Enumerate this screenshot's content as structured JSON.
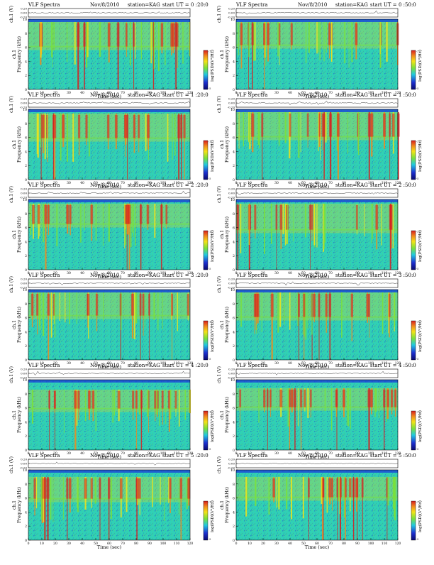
{
  "header": {
    "title": "VLF Spectra",
    "date": "Nov/8/2010",
    "station": "station=KAG",
    "start_prefix": "start  UT ="
  },
  "colors": {
    "background": "#ffffff",
    "spectrogram_base": "#2fd0b6",
    "cyan": "#20c8e0",
    "green": "#7ae03a",
    "yellow": "#f2e317",
    "orange": "#f28a1c",
    "red": "#d81e1e",
    "blue": "#1d2fd0",
    "dark_blue": "#0a0a70",
    "saturated_band": "#1a3ad8",
    "trace": "#333333"
  },
  "chart_data": [
    {
      "type": "heatmap",
      "panel": 1,
      "start_ut": "0 :20:0",
      "channel_label": "ch.1",
      "voltage_label": "ch.1 (V)",
      "voltage_ticks": [
        "0.20",
        "0.00",
        "-0.20"
      ],
      "ylabel": "Frequency  (kHz)",
      "xlabel": "Time  (sec)",
      "colorbar_label": "log(PSD)(V²/Hz)",
      "colorbar_ticks": [
        "-1",
        "-5"
      ],
      "x_ticks": [
        0,
        10,
        20,
        30,
        40,
        50,
        60,
        70,
        80,
        90,
        100,
        110,
        120
      ],
      "y_ticks": [
        0,
        2,
        4,
        6,
        8,
        10
      ],
      "xlim": [
        0,
        120
      ],
      "ylim": [
        0,
        10
      ],
      "seed": 11,
      "upper_band_khz": [
        5.6,
        9.6
      ]
    },
    {
      "type": "heatmap",
      "panel": 2,
      "start_ut": "0 :50:0",
      "channel_label": "ch.1",
      "voltage_label": "ch.1 (V)",
      "voltage_ticks": [
        "0.20",
        "0.00",
        "-0.20"
      ],
      "ylabel": "Frequency  (kHz)",
      "xlabel": "Time  (sec)",
      "colorbar_label": "log(PSD)(V²/Hz)",
      "colorbar_ticks": [
        "-1",
        "-5"
      ],
      "x_ticks": [
        0,
        10,
        20,
        30,
        40,
        50,
        60,
        70,
        80,
        90,
        100,
        110,
        120
      ],
      "y_ticks": [
        0,
        2,
        4,
        6,
        8,
        10
      ],
      "xlim": [
        0,
        120
      ],
      "ylim": [
        0,
        10
      ],
      "seed": 23,
      "upper_band_khz": [
        5.8,
        9.6
      ]
    },
    {
      "type": "heatmap",
      "panel": 3,
      "start_ut": "1 :20:0",
      "channel_label": "ch.1",
      "voltage_label": "ch.1 (V)",
      "voltage_ticks": [
        "0.20",
        "0.00",
        "-0.20"
      ],
      "ylabel": "Frequency  (kHz)",
      "xlabel": "Time  (sec)",
      "colorbar_label": "log(PSD)(V²/Hz)",
      "colorbar_ticks": [
        "-1",
        "-5"
      ],
      "x_ticks": [
        0,
        10,
        20,
        30,
        40,
        50,
        60,
        70,
        80,
        90,
        100,
        110,
        120
      ],
      "y_ticks": [
        0,
        2,
        4,
        6,
        8,
        10
      ],
      "xlim": [
        0,
        120
      ],
      "ylim": [
        0,
        10
      ],
      "seed": 37,
      "upper_band_khz": [
        5.4,
        9.4
      ]
    },
    {
      "type": "heatmap",
      "panel": 4,
      "start_ut": "1 :50:0",
      "channel_label": "ch.1",
      "voltage_label": "ch.1 (V)",
      "voltage_ticks": [
        "0.20",
        "0.00",
        "-0.20"
      ],
      "ylabel": "Frequency  (kHz)",
      "xlabel": "Time  (sec)",
      "colorbar_label": "log(PSD)(V²/Hz)",
      "colorbar_ticks": [
        "-1",
        "-5"
      ],
      "x_ticks": [
        0,
        10,
        20,
        30,
        40,
        50,
        60,
        70,
        80,
        90,
        100,
        110,
        120
      ],
      "y_ticks": [
        0,
        2,
        4,
        6,
        8,
        10
      ],
      "xlim": [
        0,
        120
      ],
      "ylim": [
        0,
        10
      ],
      "seed": 41,
      "upper_band_khz": [
        5.6,
        9.6
      ]
    },
    {
      "type": "heatmap",
      "panel": 5,
      "start_ut": "2 :20:0",
      "channel_label": "ch.1",
      "voltage_label": "ch.1 (V)",
      "voltage_ticks": [
        "0.20",
        "0.00",
        "-0.20"
      ],
      "ylabel": "Frequency  (kHz)",
      "xlabel": "Time  (sec)",
      "colorbar_label": "log(PSD)(V²/Hz)",
      "colorbar_ticks": [
        "-1",
        "-5"
      ],
      "x_ticks": [
        0,
        10,
        20,
        30,
        40,
        50,
        60,
        70,
        80,
        90,
        100,
        110,
        120
      ],
      "y_ticks": [
        0,
        2,
        4,
        6,
        8,
        10
      ],
      "xlim": [
        0,
        120
      ],
      "ylim": [
        0,
        10
      ],
      "seed": 53,
      "upper_band_khz": [
        6.0,
        9.4
      ]
    },
    {
      "type": "heatmap",
      "panel": 6,
      "start_ut": "2 :50:0",
      "channel_label": "ch.1",
      "voltage_label": "ch.1 (V)",
      "voltage_ticks": [
        "0.20",
        "0.00",
        "-0.20"
      ],
      "ylabel": "Frequency  (kHz)",
      "xlabel": "Time  (sec)",
      "colorbar_label": "log(PSD)(V²/Hz)",
      "colorbar_ticks": [
        "-1",
        "-5"
      ],
      "x_ticks": [
        0,
        10,
        20,
        30,
        40,
        50,
        60,
        70,
        80,
        90,
        100,
        110,
        120
      ],
      "y_ticks": [
        0,
        2,
        4,
        6,
        8,
        10
      ],
      "xlim": [
        0,
        120
      ],
      "ylim": [
        0,
        10
      ],
      "seed": 67,
      "upper_band_khz": [
        5.2,
        9.4
      ]
    },
    {
      "type": "heatmap",
      "panel": 7,
      "start_ut": "3 :20:0",
      "channel_label": "ch.1",
      "voltage_label": "ch.1 (V)",
      "voltage_ticks": [
        "0.20",
        "0.00",
        "-0.20"
      ],
      "ylabel": "Frequency  (kHz)",
      "xlabel": "Time  (sec)",
      "colorbar_label": "log(PSD)(V²/Hz)",
      "colorbar_ticks": [
        "-1",
        "-5"
      ],
      "x_ticks": [
        0,
        10,
        20,
        30,
        40,
        50,
        60,
        70,
        80,
        90,
        100,
        110,
        120
      ],
      "y_ticks": [
        0,
        2,
        4,
        6,
        8,
        10
      ],
      "xlim": [
        0,
        120
      ],
      "ylim": [
        0,
        10
      ],
      "seed": 71,
      "upper_band_khz": [
        5.8,
        9.6
      ]
    },
    {
      "type": "heatmap",
      "panel": 8,
      "start_ut": "3 :50:0",
      "channel_label": "ch.1",
      "voltage_label": "ch.1 (V)",
      "voltage_ticks": [
        "0.20",
        "0.00",
        "-0.20"
      ],
      "ylabel": "Frequency  (kHz)",
      "xlabel": "Time  (sec)",
      "colorbar_label": "log(PSD)(V²/Hz)",
      "colorbar_ticks": [
        "-1",
        "-5"
      ],
      "x_ticks": [
        0,
        10,
        20,
        30,
        40,
        50,
        60,
        70,
        80,
        90,
        100,
        110,
        120
      ],
      "y_ticks": [
        0,
        2,
        4,
        6,
        8,
        10
      ],
      "xlim": [
        0,
        120
      ],
      "ylim": [
        0,
        10
      ],
      "seed": 83,
      "upper_band_khz": [
        5.6,
        9.6
      ]
    },
    {
      "type": "heatmap",
      "panel": 9,
      "start_ut": "4 :20:0",
      "channel_label": "ch.1",
      "voltage_label": "ch.1 (V)",
      "voltage_ticks": [
        "0.20",
        "0.00",
        "-0.20"
      ],
      "ylabel": "Frequency  (kHz)",
      "xlabel": "Time  (sec)",
      "colorbar_label": "log(PSD)(V²/Hz)",
      "colorbar_ticks": [
        "-1",
        "-5"
      ],
      "x_ticks": [
        0,
        10,
        20,
        30,
        40,
        50,
        60,
        70,
        80,
        90,
        100,
        110,
        120
      ],
      "y_ticks": [
        0,
        2,
        4,
        6,
        8,
        10
      ],
      "xlim": [
        0,
        120
      ],
      "ylim": [
        0,
        10
      ],
      "seed": 97,
      "upper_band_khz": [
        5.4,
        8.6
      ]
    },
    {
      "type": "heatmap",
      "panel": 10,
      "start_ut": "4 :50:0",
      "channel_label": "ch.1",
      "voltage_label": "ch.1 (V)",
      "voltage_ticks": [
        "0.20",
        "0.00",
        "-0.20"
      ],
      "ylabel": "Frequency  (kHz)",
      "xlabel": "Time  (sec)",
      "colorbar_label": "log(PSD)(V²/Hz)",
      "colorbar_ticks": [
        "-1",
        "-5"
      ],
      "x_ticks": [
        0,
        10,
        20,
        30,
        40,
        50,
        60,
        70,
        80,
        90,
        100,
        110,
        120
      ],
      "y_ticks": [
        0,
        2,
        4,
        6,
        8,
        10
      ],
      "xlim": [
        0,
        120
      ],
      "ylim": [
        0,
        10
      ],
      "seed": 101,
      "upper_band_khz": [
        5.6,
        8.8
      ]
    },
    {
      "type": "heatmap",
      "panel": 11,
      "start_ut": "5 :20:0",
      "channel_label": "ch.1",
      "voltage_label": "ch.1 (V)",
      "voltage_ticks": [
        "0.20",
        "0.00",
        "-0.20"
      ],
      "ylabel": "Frequency  (kHz)",
      "xlabel": "Time  (sec)",
      "colorbar_label": "log(PSD)(V²/Hz)",
      "colorbar_ticks": [
        "-1",
        "-5"
      ],
      "x_ticks": [
        0,
        10,
        20,
        30,
        40,
        50,
        60,
        70,
        80,
        90,
        100,
        110,
        120
      ],
      "y_ticks": [
        0,
        2,
        4,
        6,
        8,
        10
      ],
      "xlim": [
        0,
        120
      ],
      "ylim": [
        0,
        10
      ],
      "seed": 113,
      "upper_band_khz": [
        5.4,
        9.0
      ]
    },
    {
      "type": "heatmap",
      "panel": 12,
      "start_ut": "5 :50:0",
      "channel_label": "ch.1",
      "voltage_label": "ch.1 (V)",
      "voltage_ticks": [
        "0.20",
        "0.00",
        "-0.20"
      ],
      "ylabel": "Frequency  (kHz)",
      "xlabel": "Time  (sec)",
      "colorbar_label": "log(PSD)(V²/Hz)",
      "colorbar_ticks": [
        "-1",
        "-5"
      ],
      "x_ticks": [
        0,
        10,
        20,
        30,
        40,
        50,
        60,
        70,
        80,
        90,
        100,
        110,
        120
      ],
      "y_ticks": [
        0,
        2,
        4,
        6,
        8,
        10
      ],
      "xlim": [
        0,
        120
      ],
      "ylim": [
        0,
        10
      ],
      "seed": 127,
      "upper_band_khz": [
        5.6,
        9.0
      ]
    }
  ]
}
